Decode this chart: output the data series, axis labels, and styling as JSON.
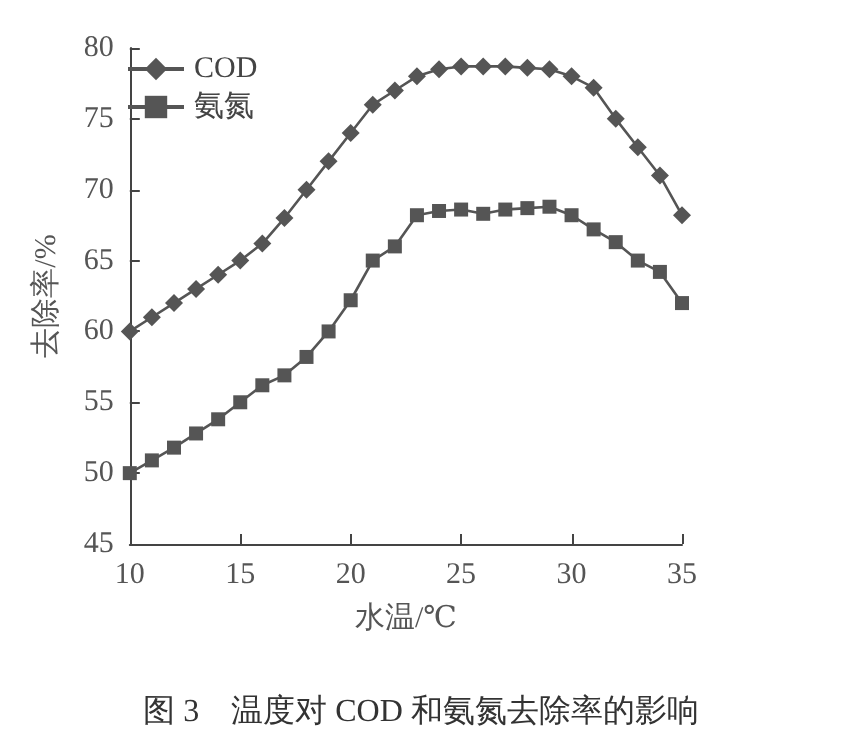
{
  "chart_data": {
    "type": "line",
    "xlabel": "水温/℃",
    "ylabel": "去除率/%",
    "x": [
      10,
      11,
      12,
      13,
      14,
      15,
      16,
      17,
      18,
      19,
      20,
      21,
      22,
      23,
      24,
      25,
      26,
      27,
      28,
      29,
      30,
      31,
      32,
      33,
      34,
      35
    ],
    "series": [
      {
        "name": "COD",
        "color": "#555555",
        "marker": "diamond",
        "values": [
          60,
          61,
          62,
          63,
          64,
          65,
          66.2,
          68,
          70,
          72,
          74,
          76,
          77,
          78,
          78.5,
          78.7,
          78.7,
          78.7,
          78.6,
          78.5,
          78,
          77.2,
          75,
          73,
          71,
          68.2
        ]
      },
      {
        "name": "氨氮",
        "color": "#555555",
        "marker": "square",
        "values": [
          50,
          50.9,
          51.8,
          52.8,
          53.8,
          55,
          56.2,
          56.9,
          58.2,
          60,
          62.2,
          65,
          66,
          68.2,
          68.5,
          68.6,
          68.3,
          68.6,
          68.7,
          68.8,
          68.2,
          67.2,
          66.3,
          65,
          64.2,
          62
        ]
      }
    ],
    "xlim": [
      10,
      35
    ],
    "xticks": [
      10,
      15,
      20,
      25,
      30,
      35
    ],
    "ylim": [
      45,
      80
    ],
    "yticks": [
      45,
      50,
      55,
      60,
      65,
      70,
      75,
      80
    ],
    "grid": false,
    "legend": "top left",
    "line_style": "solid",
    "annotations": [
      "图 3　温度对 COD 和氨氮去除率的影响"
    ]
  }
}
